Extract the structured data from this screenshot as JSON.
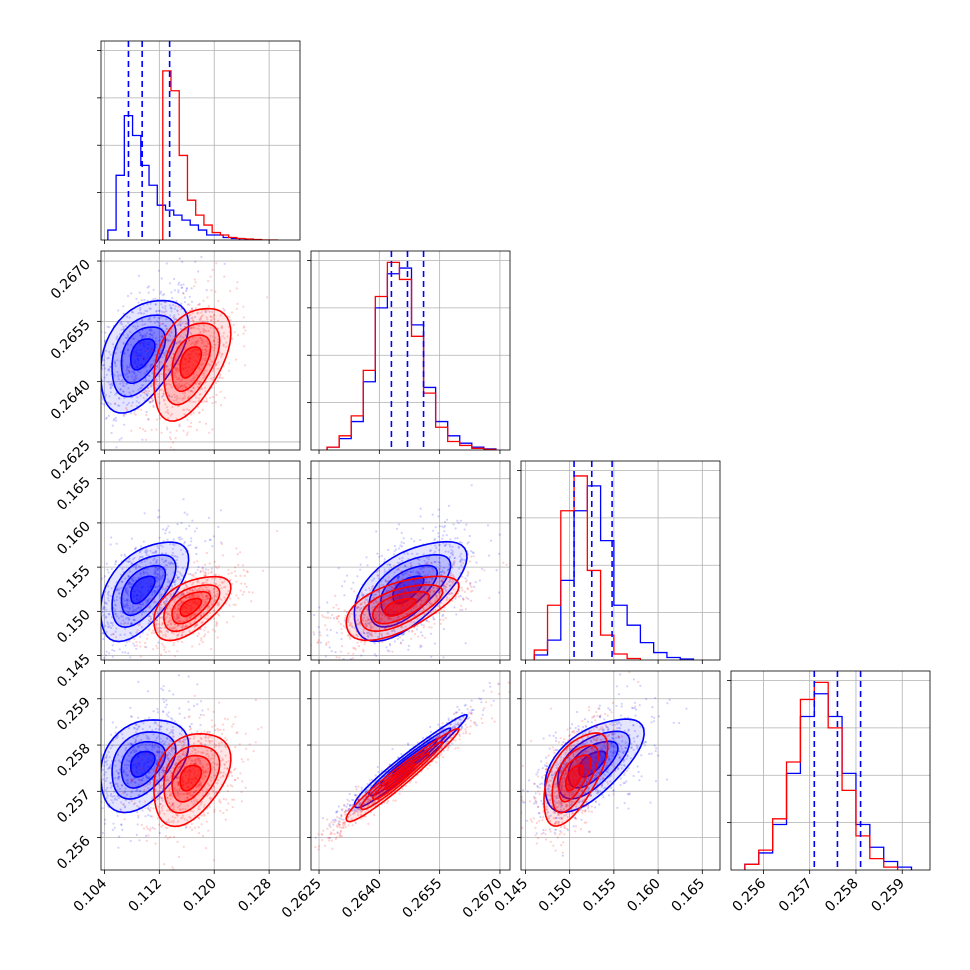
{
  "chart_data": {
    "type": "corner",
    "parameters": 4,
    "grid": true,
    "series": [
      {
        "color": "#0000ff",
        "means": [
          0.1095,
          0.2647,
          0.1525,
          0.2576
        ],
        "sds": [
          0.0032,
          0.0007,
          0.0028,
          0.0005
        ],
        "histograms": [
          {
            "ylim": [
              0,
              0.4
            ],
            "edges": [
              0.1045,
              0.1057,
              0.1069,
              0.1081,
              0.1093,
              0.1105,
              0.1117,
              0.1129,
              0.1141,
              0.1153,
              0.1165,
              0.1177,
              0.1189,
              0.1201,
              0.1213,
              0.1225,
              0.1237,
              0.1249
            ],
            "counts": [
              0.02,
              0.13,
              0.25,
              0.21,
              0.15,
              0.11,
              0.07,
              0.06,
              0.05,
              0.04,
              0.03,
              0.02,
              0.01,
              0.01,
              0.005,
              0.003,
              0
            ]
          },
          {
            "ylim": [
              0,
              0.35
            ],
            "edges": [
              0.2627,
              0.263,
              0.2633,
              0.2636,
              0.2639,
              0.2642,
              0.2645,
              0.2648,
              0.2651,
              0.2654,
              0.2657,
              0.266,
              0.2663,
              0.2666,
              0.2669
            ],
            "counts": [
              0.005,
              0.02,
              0.05,
              0.12,
              0.25,
              0.31,
              0.32,
              0.22,
              0.11,
              0.05,
              0.025,
              0.012,
              0.005,
              0.002
            ]
          },
          {
            "ylim": [
              0,
              0.4
            ],
            "edges": [
              0.146,
              0.1475,
              0.149,
              0.1505,
              0.152,
              0.1535,
              0.155,
              0.1565,
              0.158,
              0.1595,
              0.161,
              0.1625,
              0.164
            ],
            "counts": [
              0.01,
              0.04,
              0.16,
              0.3,
              0.35,
              0.24,
              0.11,
              0.07,
              0.035,
              0.015,
              0.005,
              0.002
            ]
          },
          {
            "ylim": [
              0,
              0.35
            ],
            "edges": [
              0.2556,
              0.2559,
              0.2562,
              0.2565,
              0.2568,
              0.2571,
              0.2574,
              0.2577,
              0.258,
              0.2583,
              0.2586,
              0.2589,
              0.2592
            ],
            "counts": [
              0.01,
              0.03,
              0.08,
              0.17,
              0.27,
              0.31,
              0.27,
              0.17,
              0.08,
              0.04,
              0.015,
              0.005
            ]
          }
        ],
        "quantile_lines": [
          [
            0.1075,
            0.1095,
            0.1135
          ],
          [
            0.2643,
            0.2647,
            0.2651
          ],
          [
            0.1505,
            0.1525,
            0.1548
          ],
          [
            0.2571,
            0.2576,
            0.2581
          ]
        ]
      },
      {
        "color": "#ff0000",
        "means": [
          0.1165,
          0.2645,
          0.1505,
          0.2573
        ],
        "sds": [
          0.0028,
          0.0007,
          0.0018,
          0.0005
        ],
        "histograms": [
          {
            "ylim": [
              0,
              0.4
            ],
            "edges": [
              0.1125,
              0.1137,
              0.1149,
              0.1161,
              0.1173,
              0.1185,
              0.1197,
              0.1209,
              0.1221,
              0.1233,
              0.1245,
              0.1257,
              0.1269,
              0.1281,
              0.1293
            ],
            "counts": [
              0.34,
              0.3,
              0.17,
              0.08,
              0.05,
              0.03,
              0.015,
              0.01,
              0.005,
              0.003,
              0.002,
              0.001,
              0,
              0
            ]
          },
          {
            "ylim": [
              0,
              0.35
            ],
            "edges": [
              0.2627,
              0.263,
              0.2633,
              0.2636,
              0.2639,
              0.2642,
              0.2645,
              0.2648,
              0.2651,
              0.2654,
              0.2657,
              0.266,
              0.2663,
              0.2666,
              0.2669
            ],
            "counts": [
              0.005,
              0.025,
              0.06,
              0.14,
              0.27,
              0.33,
              0.3,
              0.2,
              0.1,
              0.04,
              0.015,
              0.008,
              0.003,
              0.001
            ]
          },
          {
            "ylim": [
              0,
              0.4
            ],
            "edges": [
              0.146,
              0.1475,
              0.149,
              0.1505,
              0.152,
              0.1535,
              0.155,
              0.1565,
              0.158
            ],
            "counts": [
              0.02,
              0.11,
              0.3,
              0.37,
              0.18,
              0.05,
              0.012,
              0.003
            ]
          },
          {
            "ylim": [
              0,
              0.35
            ],
            "edges": [
              0.2556,
              0.2559,
              0.2562,
              0.2565,
              0.2568,
              0.2571,
              0.2574,
              0.2577,
              0.258,
              0.2583,
              0.2586,
              0.2589
            ],
            "counts": [
              0.01,
              0.035,
              0.09,
              0.19,
              0.3,
              0.33,
              0.25,
              0.14,
              0.06,
              0.02,
              0.005
            ]
          }
        ]
      }
    ],
    "correlations": {
      "0-1": 0.45,
      "0-2": 0.55,
      "0-3": 0.35,
      "1-2": 0.6,
      "1-3": 0.97,
      "2-3": 0.6
    },
    "axes": [
      {
        "xlim": [
          0.1035,
          0.1325
        ],
        "xticks": [
          0.104,
          0.112,
          0.12,
          0.128
        ],
        "xticklabels": [
          "0.104",
          "0.112",
          "0.120",
          "0.128"
        ]
      },
      {
        "xlim": [
          0.2623,
          0.26725
        ],
        "xticks": [
          0.2625,
          0.264,
          0.2655,
          0.267
        ],
        "xticklabels": [
          "0.2625",
          "0.2640",
          "0.2655",
          "0.2670"
        ],
        "yticks": [
          0.2625,
          0.264,
          0.2655,
          0.267
        ],
        "yticklabels": [
          "0.2625",
          "0.2640",
          "0.2655",
          "0.2670"
        ]
      },
      {
        "xlim": [
          0.1445,
          0.167
        ],
        "xticks": [
          0.145,
          0.15,
          0.155,
          0.16,
          0.165
        ],
        "xticklabels": [
          "0.145",
          "0.150",
          "0.155",
          "0.160",
          "0.165"
        ],
        "yticks": [
          0.145,
          0.15,
          0.155,
          0.16,
          0.165
        ],
        "yticklabels": [
          "0.145",
          "0.150",
          "0.155",
          "0.160",
          "0.165"
        ]
      },
      {
        "xlim": [
          0.2553,
          0.2596
        ],
        "xticks": [
          0.256,
          0.257,
          0.258,
          0.259
        ],
        "xticklabels": [
          "0.256",
          "0.257",
          "0.258",
          "0.259"
        ],
        "yticks": [
          0.256,
          0.257,
          0.258,
          0.259
        ],
        "yticklabels": [
          "0.256",
          "0.257",
          "0.258",
          "0.259"
        ]
      }
    ]
  }
}
